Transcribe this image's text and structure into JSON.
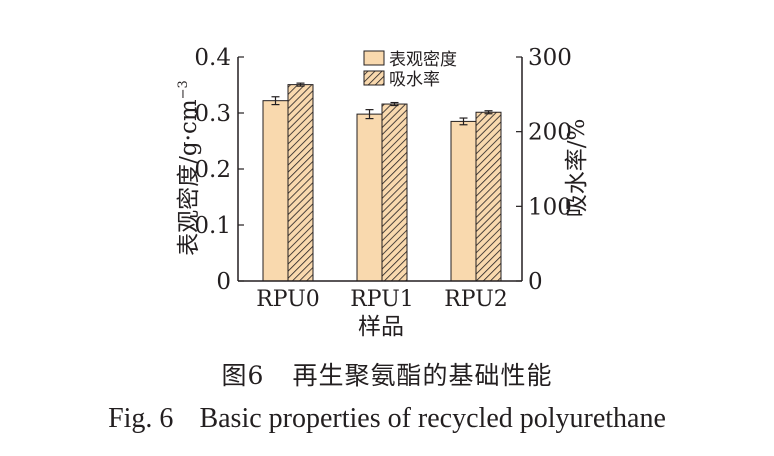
{
  "chart_data": {
    "type": "bar",
    "categories": [
      "RPU0",
      "RPU1",
      "RPU2"
    ],
    "series": [
      {
        "name": "表观密度",
        "axis": "left",
        "values": [
          0.322,
          0.298,
          0.285
        ],
        "errors": [
          0.007,
          0.008,
          0.006
        ],
        "color": "#f9d9ae",
        "pattern": "solid"
      },
      {
        "name": "吸水率",
        "axis": "right",
        "values": [
          263,
          237,
          226
        ],
        "errors": [
          2,
          2,
          2
        ],
        "color": "#f9d9ae",
        "pattern": "hatched"
      }
    ],
    "xlabel": "样品",
    "ylabel_left": "表观密度/g·cm",
    "ylabel_left_sup": "−3",
    "ylabel_right": "吸水率/%",
    "ylim_left": [
      0,
      0.4
    ],
    "ylim_right": [
      0,
      300
    ],
    "yticks_left": [
      "0",
      "0.1",
      "0.2",
      "0.3",
      "0.4"
    ],
    "yticks_right": [
      "0",
      "100",
      "200",
      "300"
    ],
    "legend_position": "top-center",
    "grid": false
  },
  "caption": {
    "cn_number": "图6",
    "cn_title": "再生聚氨酯的基础性能",
    "en_number": "Fig. 6",
    "en_title": "Basic properties of recycled polyurethane"
  }
}
